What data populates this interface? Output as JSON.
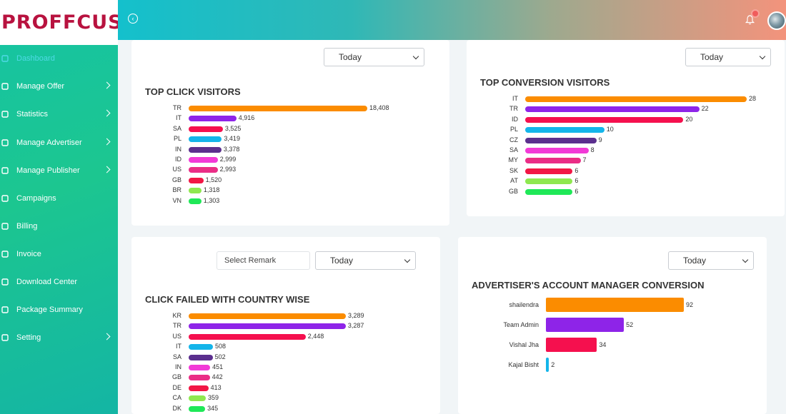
{
  "brand": {
    "logo_text": "PROFFCUS"
  },
  "header": {
    "toggle_icon": "back-circle-icon",
    "notification_icon": "bell-icon"
  },
  "sidebar": {
    "items": [
      {
        "label": "Dashboard",
        "icon": "dashboard-icon",
        "has_submenu": false,
        "active": true
      },
      {
        "label": "Manage Offer",
        "icon": "offer-icon",
        "has_submenu": true
      },
      {
        "label": "Statistics",
        "icon": "statistics-icon",
        "has_submenu": true
      },
      {
        "label": "Manage Advertiser",
        "icon": "advertiser-icon",
        "has_submenu": true
      },
      {
        "label": "Manage Publisher",
        "icon": "publisher-icon",
        "has_submenu": true
      },
      {
        "label": "Campaigns",
        "icon": "campaigns-icon",
        "has_submenu": false
      },
      {
        "label": "Billing",
        "icon": "billing-icon",
        "has_submenu": false
      },
      {
        "label": "Invoice",
        "icon": "invoice-icon",
        "has_submenu": false
      },
      {
        "label": "Download Center",
        "icon": "download-icon",
        "has_submenu": false
      },
      {
        "label": "Package Summary",
        "icon": "package-icon",
        "has_submenu": false
      },
      {
        "label": "Setting",
        "icon": "setting-icon",
        "has_submenu": true
      }
    ]
  },
  "colors": [
    "#fb8c00",
    "#8e24e8",
    "#f5104e",
    "#14b5ea",
    "#5b2f8e",
    "#f23ad7",
    "#ea2d86",
    "#f21645",
    "#8fe84f",
    "#1fe857"
  ],
  "cards": {
    "top_click": {
      "filter": "Today",
      "title": "TOP CLICK VISITORS"
    },
    "top_conversion": {
      "filter": "Today",
      "title": "TOP CONVERSION VISITORS"
    },
    "click_failed": {
      "remark_placeholder": "Select Remark",
      "filter": "Today",
      "title": "CLICK FAILED WITH COUNTRY WISE"
    },
    "account_manager": {
      "filter": "Today",
      "title": "ADVERTISER'S ACCOUNT MANAGER CONVERSION"
    }
  },
  "chart_data": [
    {
      "type": "bar",
      "orientation": "horizontal",
      "title": "TOP CLICK VISITORS",
      "categories": [
        "TR",
        "IT",
        "SA",
        "PL",
        "IN",
        "ID",
        "US",
        "GB",
        "BR",
        "VN"
      ],
      "values": [
        18408,
        4916,
        3525,
        3419,
        3378,
        2999,
        2993,
        1520,
        1318,
        1303
      ],
      "labels": [
        "18,408",
        "4,916",
        "3,525",
        "3,419",
        "3,378",
        "2,999",
        "2,993",
        "1,520",
        "1,318",
        "1,303"
      ]
    },
    {
      "type": "bar",
      "orientation": "horizontal",
      "title": "TOP CONVERSION VISITORS",
      "categories": [
        "IT",
        "TR",
        "ID",
        "PL",
        "CZ",
        "SA",
        "MY",
        "SK",
        "AT",
        "GB"
      ],
      "values": [
        28,
        22,
        20,
        10,
        9,
        8,
        7,
        6,
        6,
        6
      ],
      "labels": [
        "28",
        "22",
        "20",
        "10",
        "9",
        "8",
        "7",
        "6",
        "6",
        "6"
      ]
    },
    {
      "type": "bar",
      "orientation": "horizontal",
      "title": "CLICK FAILED WITH COUNTRY WISE",
      "categories": [
        "KR",
        "TR",
        "US",
        "IT",
        "SA",
        "IN",
        "GB",
        "DE",
        "CA",
        "DK"
      ],
      "values": [
        3289,
        3287,
        2448,
        508,
        502,
        451,
        442,
        413,
        359,
        345
      ],
      "labels": [
        "3,289",
        "3,287",
        "2,448",
        "508",
        "502",
        "451",
        "442",
        "413",
        "359",
        "345"
      ]
    },
    {
      "type": "bar",
      "orientation": "horizontal",
      "title": "ADVERTISER'S ACCOUNT MANAGER CONVERSION",
      "categories": [
        "shailendra",
        "Team Admin",
        "Vishal Jha",
        "Kajal Bisht"
      ],
      "values": [
        92,
        52,
        34,
        2
      ],
      "labels": [
        "92",
        "52",
        "34",
        "2"
      ]
    }
  ]
}
